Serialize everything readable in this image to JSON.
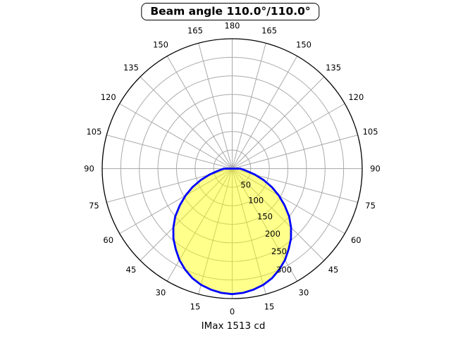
{
  "title": {
    "text": "Beam angle 110.0°/110.0°"
  },
  "footer": {
    "text": "IMax 1513 cd"
  },
  "chart_data": {
    "type": "polar",
    "title": "Beam angle 110.0°/110.0°",
    "beam_angle_c0_deg": 110.0,
    "beam_angle_c90_deg": 110.0,
    "imax_text": "IMax 1513 cd",
    "imax_cd": 1513,
    "orientation": "0-degrees-at-bottom-nadir",
    "angular_gridline_step_deg": 15,
    "angle_labels": [
      {
        "azimuth": 0,
        "label": "180"
      },
      {
        "azimuth": 15,
        "label": "165"
      },
      {
        "azimuth": 30,
        "label": "150"
      },
      {
        "azimuth": 45,
        "label": "135"
      },
      {
        "azimuth": 60,
        "label": "120"
      },
      {
        "azimuth": 75,
        "label": "105"
      },
      {
        "azimuth": 90,
        "label": "90"
      },
      {
        "azimuth": 105,
        "label": "75"
      },
      {
        "azimuth": 120,
        "label": "60"
      },
      {
        "azimuth": 135,
        "label": "45"
      },
      {
        "azimuth": 150,
        "label": "30"
      },
      {
        "azimuth": 165,
        "label": "15"
      },
      {
        "azimuth": 180,
        "label": "0"
      },
      {
        "azimuth": 195,
        "label": "15"
      },
      {
        "azimuth": 210,
        "label": "30"
      },
      {
        "azimuth": 225,
        "label": "45"
      },
      {
        "azimuth": 240,
        "label": "60"
      },
      {
        "azimuth": 255,
        "label": "75"
      },
      {
        "azimuth": 270,
        "label": "90"
      },
      {
        "azimuth": 285,
        "label": "105"
      },
      {
        "azimuth": 300,
        "label": "120"
      },
      {
        "azimuth": 315,
        "label": "135"
      },
      {
        "azimuth": 330,
        "label": "150"
      },
      {
        "azimuth": 345,
        "label": "165"
      }
    ],
    "radial_ticks": [
      50,
      100,
      150,
      200,
      250,
      300
    ],
    "radial_axis_max": 350,
    "grid": true,
    "profile_symmetric": true,
    "profile": [
      {
        "angle": 0,
        "value": 338
      },
      {
        "angle": 5,
        "value": 336
      },
      {
        "angle": 10,
        "value": 331
      },
      {
        "angle": 15,
        "value": 324
      },
      {
        "angle": 20,
        "value": 314
      },
      {
        "angle": 25,
        "value": 300
      },
      {
        "angle": 30,
        "value": 284
      },
      {
        "angle": 35,
        "value": 265
      },
      {
        "angle": 40,
        "value": 246
      },
      {
        "angle": 45,
        "value": 224
      },
      {
        "angle": 50,
        "value": 200
      },
      {
        "angle": 55,
        "value": 172
      },
      {
        "angle": 60,
        "value": 145
      },
      {
        "angle": 65,
        "value": 118
      },
      {
        "angle": 70,
        "value": 90
      },
      {
        "angle": 75,
        "value": 64
      },
      {
        "angle": 80,
        "value": 42
      },
      {
        "angle": 85,
        "value": 30
      },
      {
        "angle": 90,
        "value": 22
      }
    ],
    "colors": {
      "curve": "#0000ff",
      "fill": "rgba(255,255,0,0.45)",
      "grid": "#aaaaaa",
      "outer_circle": "#000000",
      "labels": "#000000",
      "background": "#ffffff"
    }
  }
}
